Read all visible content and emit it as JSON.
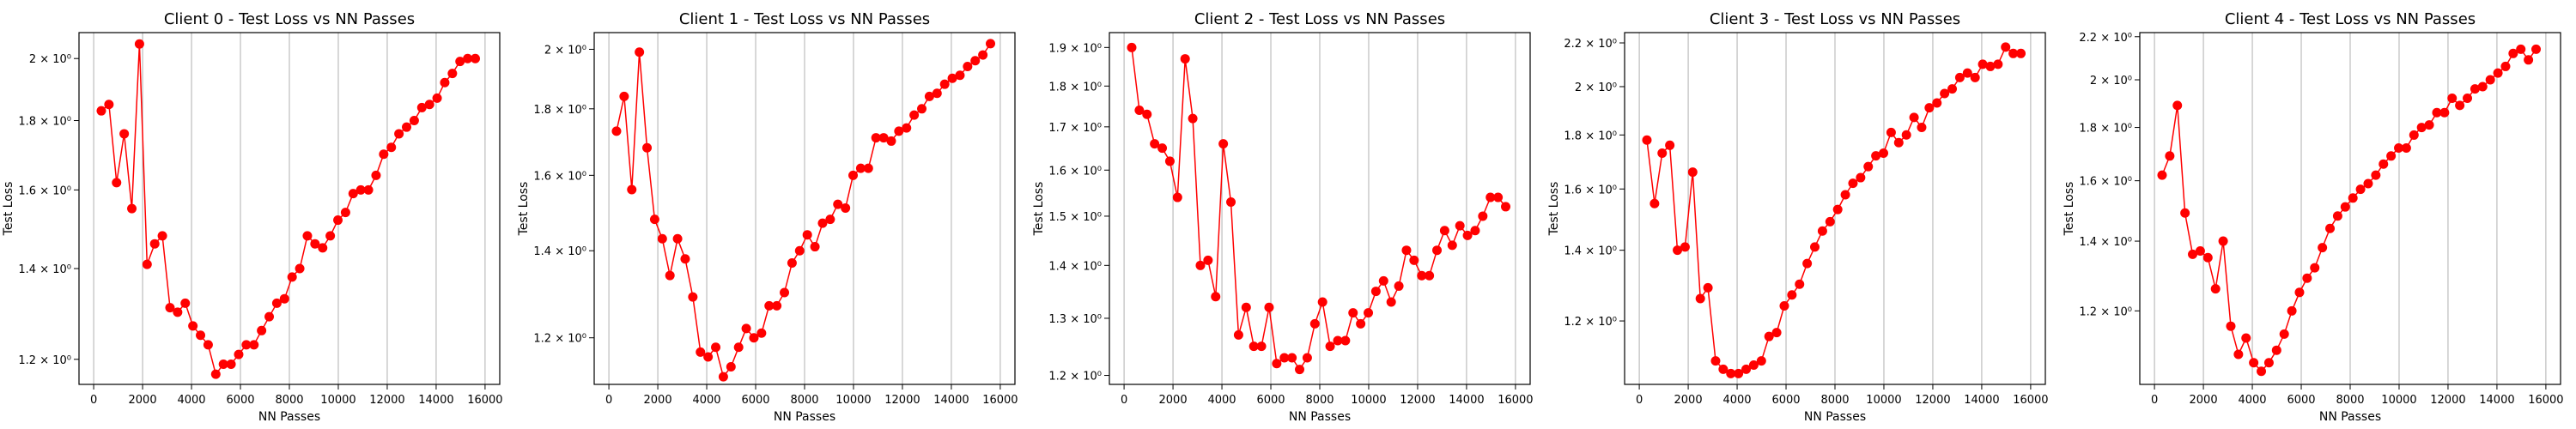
{
  "figure": {
    "marker_color": "#ff0000",
    "line_color": "#ff0000",
    "grid_color": "#b0b0b0"
  },
  "chart_data": [
    {
      "type": "line",
      "title": "Client 0 - Test Loss vs NN Passes",
      "xlabel": "NN Passes",
      "ylabel": "Test Loss",
      "y_scale": "log",
      "grid": "x-only",
      "xlim": [
        -600,
        16600
      ],
      "ylim": [
        1.15,
        2.09
      ],
      "x_ticks": [
        0,
        2000,
        4000,
        6000,
        8000,
        10000,
        12000,
        14000,
        16000
      ],
      "y_ticks": [
        {
          "value": 1.2,
          "label": "1.2 × 10⁰"
        },
        {
          "value": 1.4,
          "label": "1.4 × 10⁰"
        },
        {
          "value": 1.6,
          "label": "1.6 × 10⁰"
        },
        {
          "value": 1.8,
          "label": "1.8 × 10⁰"
        },
        {
          "value": 2.0,
          "label": "2 × 10⁰"
        }
      ],
      "series": [
        {
          "x": [
            312,
            624,
            936,
            1248,
            1560,
            1872,
            2184,
            2496,
            2808,
            3120,
            3432,
            3744,
            4056,
            4368,
            4680,
            4992,
            5304,
            5616,
            5928,
            6240,
            6552,
            6864,
            7176,
            7488,
            7800,
            8112,
            8424,
            8736,
            9048,
            9360,
            9672,
            9984,
            10296,
            10608,
            10920,
            11232,
            11544,
            11856,
            12168,
            12480,
            12792,
            13104,
            13416,
            13728,
            14040,
            14352,
            14664,
            14976,
            15288,
            15600
          ],
          "y": [
            1.83,
            1.85,
            1.62,
            1.76,
            1.55,
            2.05,
            1.41,
            1.46,
            1.48,
            1.31,
            1.3,
            1.32,
            1.27,
            1.25,
            1.23,
            1.17,
            1.19,
            1.19,
            1.21,
            1.23,
            1.23,
            1.26,
            1.29,
            1.32,
            1.33,
            1.38,
            1.4,
            1.48,
            1.46,
            1.45,
            1.48,
            1.52,
            1.54,
            1.59,
            1.6,
            1.6,
            1.64,
            1.7,
            1.72,
            1.76,
            1.78,
            1.8,
            1.84,
            1.85,
            1.87,
            1.92,
            1.95,
            1.99,
            2.0,
            2.0
          ]
        }
      ]
    },
    {
      "type": "line",
      "title": "Client 1 - Test Loss vs NN Passes",
      "xlabel": "NN Passes",
      "ylabel": "Test Loss",
      "y_scale": "log",
      "grid": "x-only",
      "xlim": [
        -600,
        16600
      ],
      "ylim": [
        1.105,
        2.06
      ],
      "x_ticks": [
        0,
        2000,
        4000,
        6000,
        8000,
        10000,
        12000,
        14000,
        16000
      ],
      "y_ticks": [
        {
          "value": 1.2,
          "label": "1.2 × 10⁰"
        },
        {
          "value": 1.4,
          "label": "1.4 × 10⁰"
        },
        {
          "value": 1.6,
          "label": "1.6 × 10⁰"
        },
        {
          "value": 1.8,
          "label": "1.8 × 10⁰"
        },
        {
          "value": 2.0,
          "label": "2 × 10⁰"
        }
      ],
      "series": [
        {
          "x": [
            312,
            624,
            936,
            1248,
            1560,
            1872,
            2184,
            2496,
            2808,
            3120,
            3432,
            3744,
            4056,
            4368,
            4680,
            4992,
            5304,
            5616,
            5928,
            6240,
            6552,
            6864,
            7176,
            7488,
            7800,
            8112,
            8424,
            8736,
            9048,
            9360,
            9672,
            9984,
            10296,
            10608,
            10920,
            11232,
            11544,
            11856,
            12168,
            12480,
            12792,
            13104,
            13416,
            13728,
            14040,
            14352,
            14664,
            14976,
            15288,
            15600
          ],
          "y": [
            1.73,
            1.84,
            1.56,
            1.99,
            1.68,
            1.48,
            1.43,
            1.34,
            1.43,
            1.38,
            1.29,
            1.17,
            1.16,
            1.18,
            1.12,
            1.14,
            1.18,
            1.22,
            1.2,
            1.21,
            1.27,
            1.27,
            1.3,
            1.37,
            1.4,
            1.44,
            1.41,
            1.47,
            1.48,
            1.52,
            1.51,
            1.6,
            1.62,
            1.62,
            1.71,
            1.71,
            1.7,
            1.73,
            1.74,
            1.78,
            1.8,
            1.84,
            1.85,
            1.88,
            1.9,
            1.91,
            1.94,
            1.96,
            1.98,
            2.02
          ]
        }
      ]
    },
    {
      "type": "line",
      "title": "Client 2 - Test Loss vs NN Passes",
      "xlabel": "NN Passes",
      "ylabel": "Test Loss",
      "y_scale": "log",
      "grid": "x-only",
      "xlim": [
        -600,
        16600
      ],
      "ylim": [
        1.185,
        1.94
      ],
      "x_ticks": [
        0,
        2000,
        4000,
        6000,
        8000,
        10000,
        12000,
        14000,
        16000
      ],
      "y_ticks": [
        {
          "value": 1.2,
          "label": "1.2 × 10⁰"
        },
        {
          "value": 1.3,
          "label": "1.3 × 10⁰"
        },
        {
          "value": 1.4,
          "label": "1.4 × 10⁰"
        },
        {
          "value": 1.5,
          "label": "1.5 × 10⁰"
        },
        {
          "value": 1.6,
          "label": "1.6 × 10⁰"
        },
        {
          "value": 1.7,
          "label": "1.7 × 10⁰"
        },
        {
          "value": 1.8,
          "label": "1.8 × 10⁰"
        },
        {
          "value": 1.9,
          "label": "1.9 × 10⁰"
        }
      ],
      "series": [
        {
          "x": [
            312,
            624,
            936,
            1248,
            1560,
            1872,
            2184,
            2496,
            2808,
            3120,
            3432,
            3744,
            4056,
            4368,
            4680,
            4992,
            5304,
            5616,
            5928,
            6240,
            6552,
            6864,
            7176,
            7488,
            7800,
            8112,
            8424,
            8736,
            9048,
            9360,
            9672,
            9984,
            10296,
            10608,
            10920,
            11232,
            11544,
            11856,
            12168,
            12480,
            12792,
            13104,
            13416,
            13728,
            14040,
            14352,
            14664,
            14976,
            15288,
            15600
          ],
          "y": [
            1.9,
            1.74,
            1.73,
            1.66,
            1.65,
            1.62,
            1.54,
            1.87,
            1.72,
            1.4,
            1.41,
            1.34,
            1.66,
            1.53,
            1.27,
            1.32,
            1.25,
            1.25,
            1.32,
            1.22,
            1.23,
            1.23,
            1.21,
            1.23,
            1.29,
            1.33,
            1.25,
            1.26,
            1.26,
            1.31,
            1.29,
            1.31,
            1.35,
            1.37,
            1.33,
            1.36,
            1.43,
            1.41,
            1.38,
            1.38,
            1.43,
            1.47,
            1.44,
            1.48,
            1.46,
            1.47,
            1.5,
            1.54,
            1.54,
            1.52
          ]
        }
      ]
    },
    {
      "type": "line",
      "title": "Client 3 - Test Loss vs NN Passes",
      "xlabel": "NN Passes",
      "ylabel": "Test Loss",
      "y_scale": "log",
      "grid": "x-only",
      "xlim": [
        -600,
        16600
      ],
      "ylim": [
        1.045,
        2.25
      ],
      "x_ticks": [
        0,
        2000,
        4000,
        6000,
        8000,
        10000,
        12000,
        14000,
        16000
      ],
      "y_ticks": [
        {
          "value": 1.2,
          "label": "1.2 × 10⁰"
        },
        {
          "value": 1.4,
          "label": "1.4 × 10⁰"
        },
        {
          "value": 1.6,
          "label": "1.6 × 10⁰"
        },
        {
          "value": 1.8,
          "label": "1.8 × 10⁰"
        },
        {
          "value": 2.0,
          "label": "2 × 10⁰"
        },
        {
          "value": 2.2,
          "label": "2.2 × 10⁰"
        }
      ],
      "series": [
        {
          "x": [
            312,
            624,
            936,
            1248,
            1560,
            1872,
            2184,
            2496,
            2808,
            3120,
            3432,
            3744,
            4056,
            4368,
            4680,
            4992,
            5304,
            5616,
            5928,
            6240,
            6552,
            6864,
            7176,
            7488,
            7800,
            8112,
            8424,
            8736,
            9048,
            9360,
            9672,
            9984,
            10296,
            10608,
            10920,
            11232,
            11544,
            11856,
            12168,
            12480,
            12792,
            13104,
            13416,
            13728,
            14040,
            14352,
            14664,
            14976,
            15288,
            15600
          ],
          "y": [
            1.78,
            1.55,
            1.73,
            1.76,
            1.4,
            1.41,
            1.66,
            1.26,
            1.29,
            1.1,
            1.08,
            1.07,
            1.07,
            1.08,
            1.09,
            1.1,
            1.16,
            1.17,
            1.24,
            1.27,
            1.3,
            1.36,
            1.41,
            1.46,
            1.49,
            1.53,
            1.58,
            1.62,
            1.64,
            1.68,
            1.72,
            1.73,
            1.81,
            1.77,
            1.8,
            1.87,
            1.83,
            1.91,
            1.93,
            1.97,
            1.99,
            2.04,
            2.06,
            2.04,
            2.1,
            2.09,
            2.1,
            2.18,
            2.15,
            2.15
          ]
        }
      ]
    },
    {
      "type": "line",
      "title": "Client 4 - Test Loss vs NN Passes",
      "xlabel": "NN Passes",
      "ylabel": "Test Loss",
      "y_scale": "log",
      "grid": "x-only",
      "xlim": [
        -600,
        16600
      ],
      "ylim": [
        1.02,
        2.22
      ],
      "x_ticks": [
        0,
        2000,
        4000,
        6000,
        8000,
        10000,
        12000,
        14000,
        16000
      ],
      "y_ticks": [
        {
          "value": 1.2,
          "label": "1.2 × 10⁰"
        },
        {
          "value": 1.4,
          "label": "1.4 × 10⁰"
        },
        {
          "value": 1.6,
          "label": "1.6 × 10⁰"
        },
        {
          "value": 1.8,
          "label": "1.8 × 10⁰"
        },
        {
          "value": 2.0,
          "label": "2 × 10⁰"
        },
        {
          "value": 2.2,
          "label": "2.2 × 10⁰"
        }
      ],
      "series": [
        {
          "x": [
            312,
            624,
            936,
            1248,
            1560,
            1872,
            2184,
            2496,
            2808,
            3120,
            3432,
            3744,
            4056,
            4368,
            4680,
            4992,
            5304,
            5616,
            5928,
            6240,
            6552,
            6864,
            7176,
            7488,
            7800,
            8112,
            8424,
            8736,
            9048,
            9360,
            9672,
            9984,
            10296,
            10608,
            10920,
            11232,
            11544,
            11856,
            12168,
            12480,
            12792,
            13104,
            13416,
            13728,
            14040,
            14352,
            14664,
            14976,
            15288,
            15600
          ],
          "y": [
            1.62,
            1.69,
            1.89,
            1.49,
            1.36,
            1.37,
            1.35,
            1.26,
            1.4,
            1.16,
            1.09,
            1.13,
            1.07,
            1.05,
            1.07,
            1.1,
            1.14,
            1.2,
            1.25,
            1.29,
            1.32,
            1.38,
            1.44,
            1.48,
            1.51,
            1.54,
            1.57,
            1.59,
            1.62,
            1.66,
            1.69,
            1.72,
            1.72,
            1.77,
            1.8,
            1.81,
            1.86,
            1.86,
            1.92,
            1.89,
            1.92,
            1.96,
            1.97,
            2.0,
            2.03,
            2.06,
            2.12,
            2.14,
            2.09,
            2.14
          ]
        }
      ]
    }
  ]
}
